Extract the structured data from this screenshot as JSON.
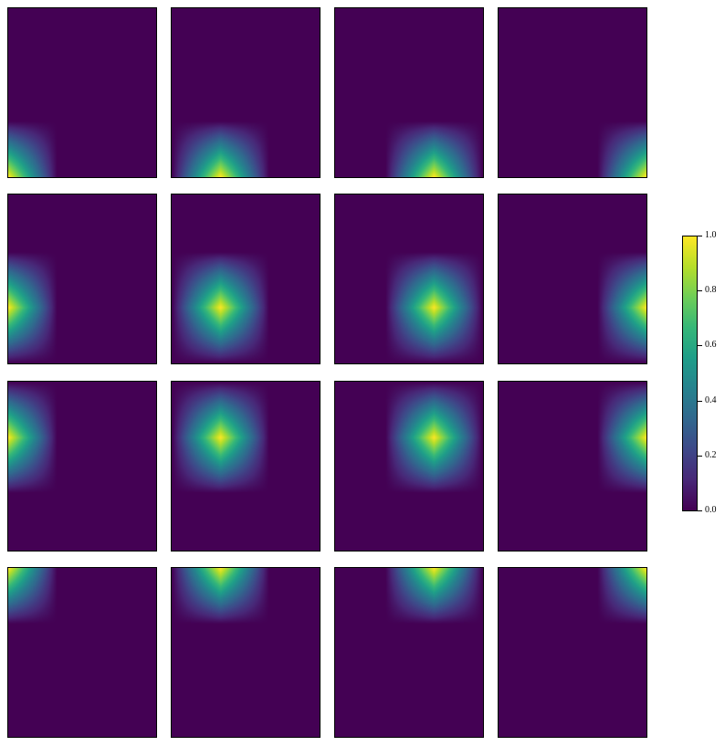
{
  "chart_data": {
    "type": "heatmap",
    "layout": {
      "rows": 4,
      "cols": 4
    },
    "colormap": "viridis",
    "colormap_stops": [
      "#440154",
      "#482878",
      "#3e4989",
      "#31688e",
      "#26828e",
      "#1f9e89",
      "#35b779",
      "#6ece58",
      "#b5de2b",
      "#fde725"
    ],
    "value_range": [
      0,
      1
    ],
    "kernel": {
      "shape": "hat",
      "half_width_x": 0.33,
      "half_width_y": 0.33
    },
    "panels": [
      {
        "row": 0,
        "col": 0,
        "peak": [
          0.0,
          0.0
        ]
      },
      {
        "row": 0,
        "col": 1,
        "peak": [
          0.33,
          0.0
        ]
      },
      {
        "row": 0,
        "col": 2,
        "peak": [
          0.67,
          0.0
        ]
      },
      {
        "row": 0,
        "col": 3,
        "peak": [
          1.0,
          0.0
        ]
      },
      {
        "row": 1,
        "col": 0,
        "peak": [
          0.0,
          0.33
        ]
      },
      {
        "row": 1,
        "col": 1,
        "peak": [
          0.33,
          0.33
        ]
      },
      {
        "row": 1,
        "col": 2,
        "peak": [
          0.67,
          0.33
        ]
      },
      {
        "row": 1,
        "col": 3,
        "peak": [
          1.0,
          0.33
        ]
      },
      {
        "row": 2,
        "col": 0,
        "peak": [
          0.0,
          0.67
        ]
      },
      {
        "row": 2,
        "col": 1,
        "peak": [
          0.33,
          0.67
        ]
      },
      {
        "row": 2,
        "col": 2,
        "peak": [
          0.67,
          0.67
        ]
      },
      {
        "row": 2,
        "col": 3,
        "peak": [
          1.0,
          0.67
        ]
      },
      {
        "row": 3,
        "col": 0,
        "peak": [
          0.0,
          1.0
        ]
      },
      {
        "row": 3,
        "col": 1,
        "peak": [
          0.33,
          1.0
        ]
      },
      {
        "row": 3,
        "col": 2,
        "peak": [
          0.67,
          1.0
        ]
      },
      {
        "row": 3,
        "col": 3,
        "peak": [
          1.0,
          1.0
        ]
      }
    ],
    "colorbar": {
      "ticks": [
        0.0,
        0.2,
        0.4,
        0.6,
        0.8,
        1.0
      ],
      "tick_labels": [
        "0.0",
        "0.2",
        "0.4",
        "0.6",
        "0.8",
        "1.0"
      ]
    }
  }
}
